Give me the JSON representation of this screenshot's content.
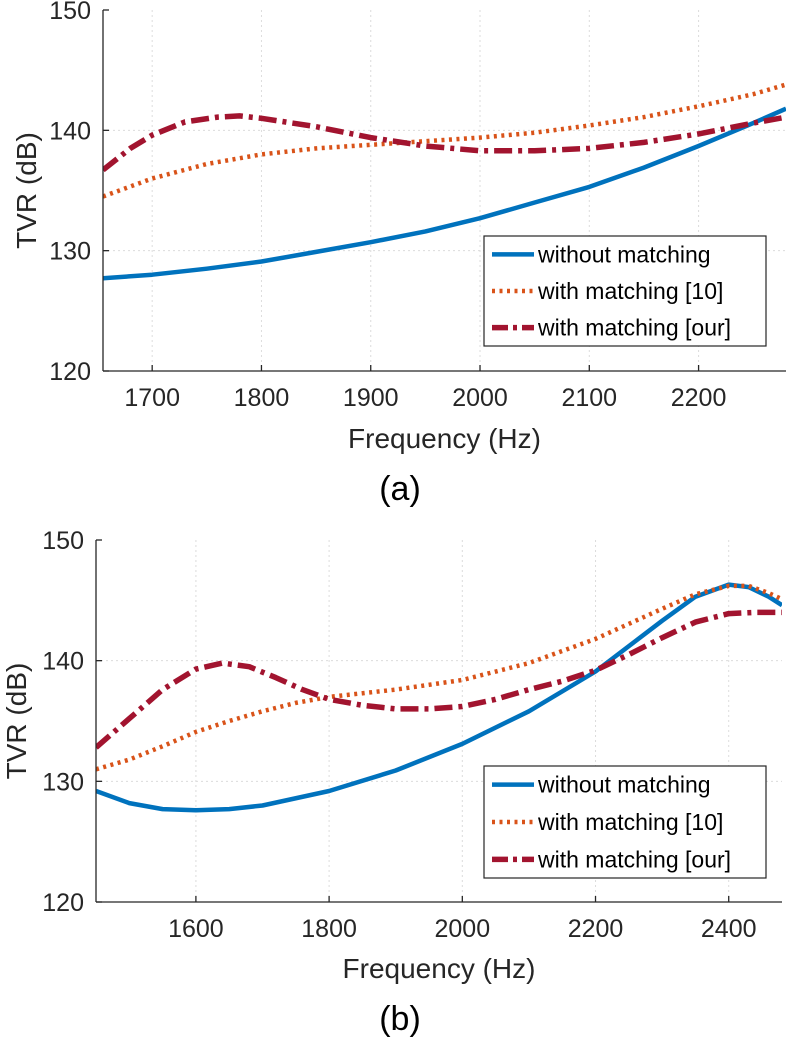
{
  "chart_data": [
    {
      "type": "line",
      "panel_label": "(a)",
      "title": "",
      "xlabel": "Frequency (Hz)",
      "ylabel": "TVR (dB)",
      "xlim": [
        1655,
        2280
      ],
      "ylim": [
        120,
        150
      ],
      "xticks": [
        1700,
        1800,
        1900,
        2000,
        2100,
        2200
      ],
      "yticks": [
        120,
        130,
        140,
        150
      ],
      "grid": true,
      "legend_position": "bottom-right",
      "series": [
        {
          "name": "without matching",
          "color": "#0072BD",
          "style": "solid",
          "x": [
            1655,
            1700,
            1750,
            1800,
            1850,
            1900,
            1950,
            2000,
            2050,
            2100,
            2150,
            2200,
            2250,
            2280
          ],
          "y": [
            127.7,
            128.0,
            128.5,
            129.1,
            129.9,
            130.7,
            131.6,
            132.7,
            134.0,
            135.3,
            136.9,
            138.7,
            140.6,
            141.8
          ]
        },
        {
          "name": "with matching [10]",
          "color": "#D95319",
          "style": "dotted",
          "x": [
            1655,
            1700,
            1750,
            1800,
            1850,
            1900,
            1950,
            2000,
            2050,
            2100,
            2150,
            2200,
            2250,
            2280
          ],
          "y": [
            134.5,
            136.0,
            137.2,
            138.0,
            138.5,
            138.8,
            139.1,
            139.4,
            139.8,
            140.4,
            141.1,
            142.0,
            143.0,
            143.8
          ]
        },
        {
          "name": "with matching [our]",
          "color": "#A2142F",
          "style": "dashdot",
          "x": [
            1655,
            1680,
            1700,
            1730,
            1760,
            1780,
            1800,
            1850,
            1900,
            1950,
            2000,
            2050,
            2100,
            2150,
            2200,
            2250,
            2280
          ],
          "y": [
            136.7,
            138.5,
            139.6,
            140.7,
            141.1,
            141.2,
            141.0,
            140.3,
            139.4,
            138.7,
            138.3,
            138.3,
            138.5,
            139.0,
            139.7,
            140.6,
            141.1
          ]
        }
      ]
    },
    {
      "type": "line",
      "panel_label": "(b)",
      "title": "",
      "xlabel": "Frequency (Hz)",
      "ylabel": "TVR (dB)",
      "xlim": [
        1450,
        2480
      ],
      "ylim": [
        120,
        150
      ],
      "xticks": [
        1600,
        1800,
        2000,
        2200,
        2400
      ],
      "yticks": [
        120,
        130,
        140,
        150
      ],
      "grid": true,
      "legend_position": "bottom-right",
      "series": [
        {
          "name": "without matching",
          "color": "#0072BD",
          "style": "solid",
          "x": [
            1450,
            1500,
            1550,
            1600,
            1650,
            1700,
            1800,
            1900,
            2000,
            2100,
            2200,
            2300,
            2350,
            2400,
            2430,
            2460,
            2480
          ],
          "y": [
            129.2,
            128.2,
            127.7,
            127.6,
            127.7,
            128.0,
            129.2,
            130.9,
            133.1,
            135.8,
            139.1,
            143.3,
            145.3,
            146.3,
            146.1,
            145.3,
            144.6
          ]
        },
        {
          "name": "with matching [10]",
          "color": "#D95319",
          "style": "dotted",
          "x": [
            1450,
            1500,
            1550,
            1600,
            1650,
            1700,
            1750,
            1800,
            1900,
            2000,
            2100,
            2200,
            2300,
            2350,
            2400,
            2430,
            2460,
            2480
          ],
          "y": [
            131.0,
            131.8,
            132.9,
            134.1,
            135.0,
            135.8,
            136.5,
            137.0,
            137.6,
            138.4,
            139.8,
            141.8,
            144.3,
            145.5,
            146.2,
            146.2,
            145.6,
            145.1
          ]
        },
        {
          "name": "with matching [our]",
          "color": "#A2142F",
          "style": "dashdot",
          "x": [
            1450,
            1500,
            1550,
            1600,
            1640,
            1680,
            1720,
            1760,
            1800,
            1850,
            1900,
            1950,
            2000,
            2050,
            2100,
            2150,
            2200,
            2250,
            2300,
            2350,
            2400,
            2440,
            2480
          ],
          "y": [
            132.8,
            135.2,
            137.6,
            139.3,
            139.8,
            139.5,
            138.6,
            137.6,
            136.8,
            136.3,
            136.0,
            136.0,
            136.2,
            136.8,
            137.6,
            138.3,
            139.2,
            140.5,
            141.9,
            143.2,
            143.9,
            144.0,
            144.0
          ]
        }
      ]
    }
  ]
}
